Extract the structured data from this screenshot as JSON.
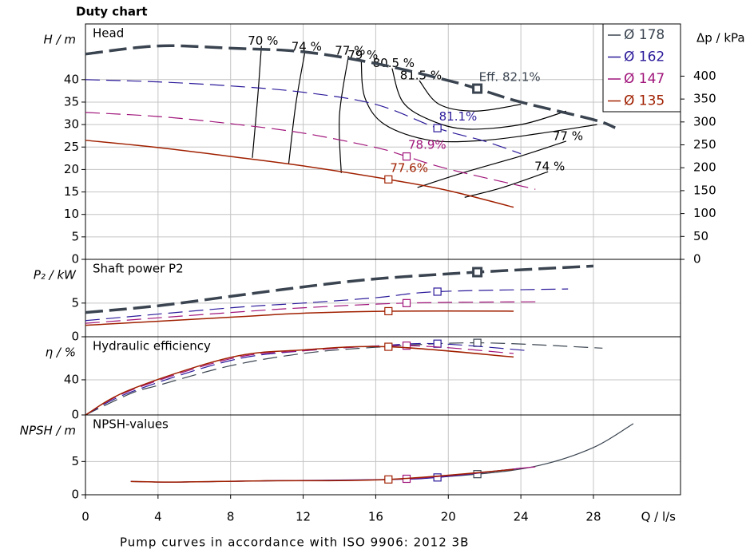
{
  "title": "Duty chart",
  "footer": "Pump curves in accordance with ISO 9906: 2012 3B",
  "chart_data": [
    {
      "type": "line",
      "label": "Head",
      "ylabel": "H / m",
      "y2label": "Δp / kPa",
      "ylim": [
        0,
        52.4
      ],
      "yticks": [
        0,
        5,
        10,
        15,
        20,
        25,
        30,
        35,
        40
      ],
      "y2lim": [
        0,
        514
      ],
      "y2ticks": [
        0,
        50,
        100,
        150,
        200,
        250,
        300,
        350,
        400
      ],
      "xlim": [
        0,
        32.8
      ],
      "xticks": [
        0,
        4,
        8,
        12,
        16,
        20,
        24,
        28
      ],
      "legend": "top-right",
      "series": [
        {
          "name": "Ø 178",
          "color": "#3a4450",
          "style": "dashed",
          "width": 3.5,
          "x": [
            0,
            4,
            8,
            12,
            16,
            20,
            21.6,
            24,
            28,
            29.2
          ],
          "values": [
            45.7,
            47.5,
            47,
            46.2,
            43.6,
            39.8,
            38,
            35,
            31.1,
            29.3
          ],
          "duty_point": [
            21.6,
            38
          ],
          "duty_label": "Eff.  82.1%"
        },
        {
          "name": "Ø 162",
          "color": "#2a1a9a",
          "style": "dashed",
          "width": 1.2,
          "x": [
            0,
            4,
            8,
            12,
            16,
            19.4,
            22,
            24
          ],
          "values": [
            40,
            39.5,
            38.6,
            37.2,
            34.5,
            29.2,
            26.3,
            23.5
          ],
          "duty_point": [
            19.4,
            29.2
          ],
          "duty_label": "81.1%"
        },
        {
          "name": "Ø 147",
          "color": "#a0147a",
          "style": "dashed",
          "width": 1.2,
          "x": [
            0,
            4,
            8,
            12,
            16,
            17.7,
            20,
            24.8
          ],
          "values": [
            32.7,
            31.8,
            30.2,
            28.1,
            24.9,
            22.9,
            20.1,
            15.6
          ],
          "duty_point": [
            17.7,
            22.9
          ],
          "duty_label": "78.9%"
        },
        {
          "name": "Ø 135",
          "color": "#a02000",
          "style": "solid",
          "width": 1.5,
          "x": [
            0,
            4,
            8,
            12,
            16.7,
            20,
            23.6
          ],
          "values": [
            26.5,
            24.9,
            22.9,
            20.8,
            17.8,
            15.3,
            11.6
          ],
          "duty_point": [
            16.7,
            17.8
          ],
          "duty_label": "77.6%"
        }
      ],
      "contours": [
        {
          "label": "70 %",
          "x": [
            9.2,
            9.5,
            9.7
          ],
          "y": [
            22.6,
            36.4,
            47.5
          ]
        },
        {
          "label": "74 %",
          "x": [
            11.2,
            11.6,
            12.1
          ],
          "y": [
            21.2,
            34.7,
            46.2
          ]
        },
        {
          "label": "77 %",
          "x": [
            14.1,
            14,
            14.5
          ],
          "y": [
            19.2,
            32,
            45.3
          ]
        },
        {
          "label": "79 %",
          "x": [
            28.2,
            25,
            22,
            19,
            16.5,
            15.4,
            15.2
          ],
          "y": [
            30,
            28,
            26.5,
            26.5,
            30,
            36,
            44.3
          ]
        },
        {
          "label": "80.5 %",
          "x": [
            26.5,
            24,
            21,
            19,
            17.5,
            16.9
          ],
          "y": [
            33,
            30,
            29,
            31,
            35,
            42.5
          ]
        },
        {
          "label": "81.5 %",
          "x": [
            24,
            21.5,
            19.5,
            18.4
          ],
          "y": [
            34.5,
            33,
            34.5,
            39.8
          ]
        },
        {
          "label": "77 %",
          "x": [
            18.3,
            21,
            24,
            26.5
          ],
          "y": [
            16,
            19.5,
            23,
            26.3
          ]
        },
        {
          "label": "74 %",
          "x": [
            20.9,
            23,
            25.5
          ],
          "y": [
            13.8,
            16,
            19.5
          ]
        }
      ]
    },
    {
      "type": "line",
      "label": "Shaft power P2",
      "ylabel": "P₂ / kW",
      "ylim": [
        0,
        11.5
      ],
      "yticks": [
        0,
        5
      ],
      "xlim": [
        0,
        32.8
      ],
      "xticks": [
        0,
        4,
        8,
        12,
        16,
        20,
        24,
        28
      ],
      "series": [
        {
          "color": "#3a4450",
          "style": "dashed",
          "width": 3.5,
          "x": [
            0,
            4,
            8,
            12,
            16,
            21.6,
            28
          ],
          "values": [
            3.6,
            4.6,
            6,
            7.4,
            8.6,
            9.6,
            10.5
          ],
          "duty_point": [
            21.6,
            9.6
          ]
        },
        {
          "color": "#2a1a9a",
          "style": "dashed",
          "width": 1.2,
          "x": [
            0,
            8,
            12,
            16,
            19.4,
            26.6
          ],
          "values": [
            2.4,
            4.3,
            5,
            5.8,
            6.7,
            7.1
          ],
          "duty_point": [
            19.4,
            6.7
          ]
        },
        {
          "color": "#a0147a",
          "style": "dashed",
          "width": 1.2,
          "x": [
            0,
            8,
            12,
            17.7,
            25
          ],
          "values": [
            2,
            3.6,
            4.3,
            5,
            5.2
          ],
          "duty_point": [
            17.7,
            5
          ]
        },
        {
          "color": "#a02000",
          "style": "solid",
          "width": 1.5,
          "x": [
            0,
            8,
            12,
            16.7,
            23.6
          ],
          "values": [
            1.7,
            2.9,
            3.5,
            3.8,
            3.8
          ],
          "duty_point": [
            16.7,
            3.8
          ]
        }
      ]
    },
    {
      "type": "line",
      "label": "Hydraulic efficiency",
      "ylabel": "η / %",
      "ylim": [
        0,
        89
      ],
      "yticks": [
        0,
        40
      ],
      "xlim": [
        0,
        32.8
      ],
      "xticks": [
        0,
        4,
        8,
        12,
        16,
        20,
        24,
        28
      ],
      "series": [
        {
          "color": "#3a4450",
          "style": "dashed",
          "width": 1.2,
          "x": [
            0,
            2.5,
            4,
            8,
            12,
            16,
            21.6,
            28.5
          ],
          "values": [
            0,
            24.5,
            33.6,
            56,
            70,
            77,
            82.1,
            76
          ],
          "duty_point": [
            21.6,
            82.1
          ]
        },
        {
          "color": "#2a1a9a",
          "style": "dashed",
          "width": 1.2,
          "x": [
            0,
            2.5,
            8,
            12,
            16,
            19.4,
            24.5
          ],
          "values": [
            0,
            26,
            62,
            73,
            78.5,
            81.1,
            73
          ],
          "duty_point": [
            19.4,
            81.1
          ]
        },
        {
          "color": "#a0147a",
          "style": "dashed",
          "width": 1.2,
          "x": [
            0,
            2.5,
            8,
            12,
            17.7,
            23.6
          ],
          "values": [
            0,
            28,
            64,
            73,
            78.9,
            70
          ],
          "duty_point": [
            17.7,
            78.9
          ]
        },
        {
          "color": "#a02000",
          "style": "solid",
          "width": 1.5,
          "x": [
            0,
            2.5,
            8,
            12,
            16.7,
            23.6
          ],
          "values": [
            0,
            29,
            65.5,
            74,
            77.6,
            66
          ],
          "duty_point": [
            16.7,
            77.6
          ]
        }
      ]
    },
    {
      "type": "line",
      "label": "NPSH-values",
      "ylabel": "NPSH / m",
      "xlabel": "Q / l/s",
      "ylim": [
        0,
        12
      ],
      "yticks": [
        0,
        5
      ],
      "xlim": [
        0,
        32.8
      ],
      "xticks": [
        0,
        4,
        8,
        12,
        16,
        20,
        24,
        28
      ],
      "series": [
        {
          "color": "#3a4450",
          "style": "solid",
          "width": 1.2,
          "x": [
            2.5,
            5,
            10,
            16.7,
            21.6,
            25,
            28,
            30.2
          ],
          "values": [
            2,
            1.9,
            2.1,
            2.3,
            3.1,
            4.4,
            7.1,
            10.7
          ],
          "duty_point": [
            21.6,
            3.1
          ]
        },
        {
          "color": "#2a1a9a",
          "style": "solid",
          "width": 1.2,
          "x": [
            2.5,
            5,
            10,
            16.7,
            19.4,
            24
          ],
          "values": [
            2,
            1.9,
            2.1,
            2.3,
            2.6,
            4
          ],
          "duty_point": [
            19.4,
            2.6
          ]
        },
        {
          "color": "#a0147a",
          "style": "solid",
          "width": 1.2,
          "x": [
            2.5,
            5,
            10,
            17.7,
            24.8
          ],
          "values": [
            2,
            1.9,
            2.1,
            2.4,
            4.2
          ],
          "duty_point": [
            17.7,
            2.4
          ]
        },
        {
          "color": "#a02000",
          "style": "solid",
          "width": 1.5,
          "x": [
            2.5,
            5,
            10,
            16.7,
            23.6
          ],
          "values": [
            2,
            1.9,
            2.1,
            2.3,
            3.8
          ],
          "duty_point": [
            16.7,
            2.3
          ]
        }
      ]
    }
  ]
}
